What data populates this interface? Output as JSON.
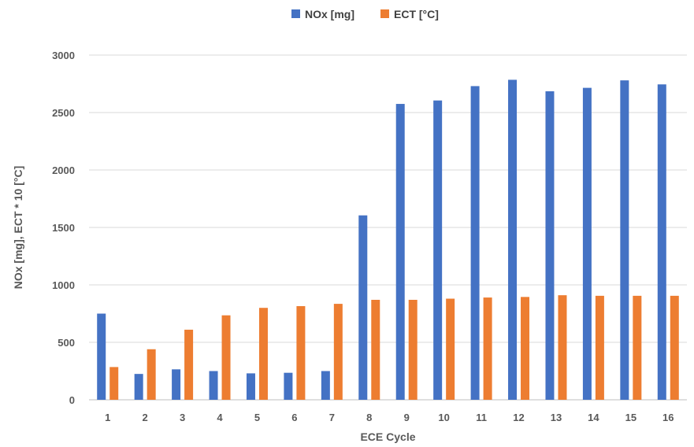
{
  "chart_data": {
    "type": "bar",
    "title": "",
    "xlabel": "ECE Cycle",
    "ylabel": "NOx [mg], ECT * 10 [°C]",
    "ylim": [
      0,
      3000
    ],
    "yticks": [
      "0",
      "500",
      "1000",
      "1500",
      "2000",
      "2500",
      "3000"
    ],
    "categories": [
      "1",
      "2",
      "3",
      "4",
      "5",
      "6",
      "7",
      "8",
      "9",
      "10",
      "11",
      "12",
      "13",
      "14",
      "15",
      "16"
    ],
    "series": [
      {
        "name": "NOx [mg]",
        "color": "#4472C4",
        "values": [
          750,
          225,
          265,
          250,
          230,
          235,
          250,
          1605,
          2575,
          2605,
          2730,
          2785,
          2685,
          2715,
          2780,
          2745
        ]
      },
      {
        "name": "ECT [°C]",
        "color": "#ED7D31",
        "values": [
          285,
          440,
          610,
          735,
          800,
          815,
          835,
          870,
          870,
          880,
          890,
          895,
          910,
          905,
          905,
          905
        ]
      }
    ],
    "grid": true,
    "legend": "top-center"
  }
}
